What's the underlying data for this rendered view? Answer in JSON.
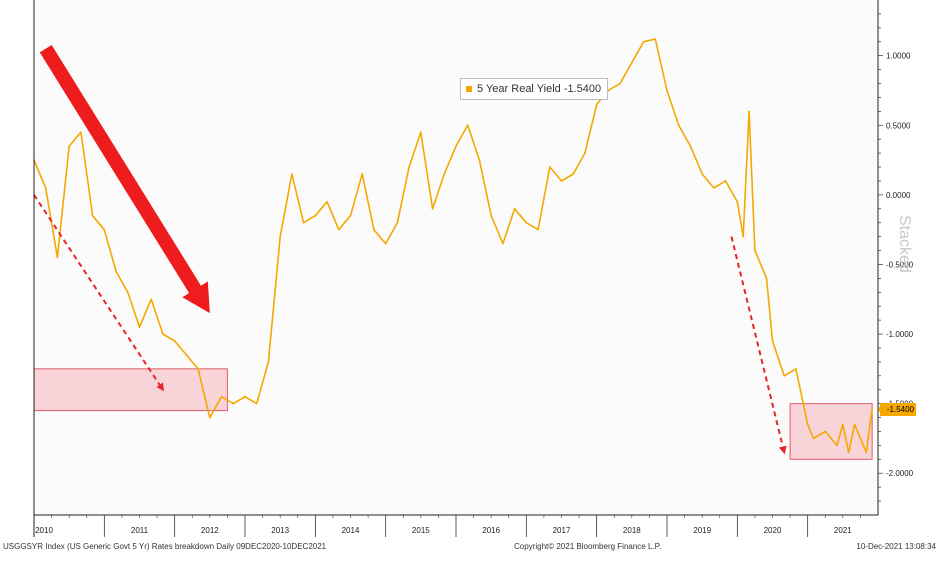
{
  "chart_data": {
    "type": "line",
    "legend": {
      "series_label": "5 Year Real Yield -1.5400",
      "placement": "top-center"
    },
    "series": [
      {
        "name": "5 Year Real Yield",
        "color": "#f5a800",
        "points": [
          [
            "2010-01",
            0.25
          ],
          [
            "2010-03",
            0.05
          ],
          [
            "2010-05",
            -0.45
          ],
          [
            "2010-07",
            0.35
          ],
          [
            "2010-09",
            0.45
          ],
          [
            "2010-11",
            -0.15
          ],
          [
            "2011-01",
            -0.25
          ],
          [
            "2011-03",
            -0.55
          ],
          [
            "2011-05",
            -0.7
          ],
          [
            "2011-07",
            -0.95
          ],
          [
            "2011-09",
            -0.75
          ],
          [
            "2011-11",
            -1.0
          ],
          [
            "2012-01",
            -1.05
          ],
          [
            "2012-03",
            -1.15
          ],
          [
            "2012-05",
            -1.25
          ],
          [
            "2012-07",
            -1.6
          ],
          [
            "2012-09",
            -1.45
          ],
          [
            "2012-11",
            -1.5
          ],
          [
            "2013-01",
            -1.45
          ],
          [
            "2013-03",
            -1.5
          ],
          [
            "2013-05",
            -1.2
          ],
          [
            "2013-07",
            -0.3
          ],
          [
            "2013-09",
            0.15
          ],
          [
            "2013-11",
            -0.2
          ],
          [
            "2014-01",
            -0.15
          ],
          [
            "2014-03",
            -0.05
          ],
          [
            "2014-05",
            -0.25
          ],
          [
            "2014-07",
            -0.15
          ],
          [
            "2014-09",
            0.15
          ],
          [
            "2014-11",
            -0.25
          ],
          [
            "2015-01",
            -0.35
          ],
          [
            "2015-03",
            -0.2
          ],
          [
            "2015-05",
            0.2
          ],
          [
            "2015-07",
            0.45
          ],
          [
            "2015-09",
            -0.1
          ],
          [
            "2015-11",
            0.15
          ],
          [
            "2016-01",
            0.35
          ],
          [
            "2016-03",
            0.5
          ],
          [
            "2016-05",
            0.25
          ],
          [
            "2016-07",
            -0.15
          ],
          [
            "2016-09",
            -0.35
          ],
          [
            "2016-11",
            -0.1
          ],
          [
            "2017-01",
            -0.2
          ],
          [
            "2017-03",
            -0.25
          ],
          [
            "2017-05",
            0.2
          ],
          [
            "2017-07",
            0.1
          ],
          [
            "2017-09",
            0.15
          ],
          [
            "2017-11",
            0.3
          ],
          [
            "2018-01",
            0.65
          ],
          [
            "2018-03",
            0.75
          ],
          [
            "2018-05",
            0.8
          ],
          [
            "2018-07",
            0.95
          ],
          [
            "2018-09",
            1.1
          ],
          [
            "2018-11",
            1.12
          ],
          [
            "2019-01",
            0.75
          ],
          [
            "2019-03",
            0.5
          ],
          [
            "2019-05",
            0.35
          ],
          [
            "2019-07",
            0.15
          ],
          [
            "2019-09",
            0.05
          ],
          [
            "2019-11",
            0.1
          ],
          [
            "2020-01",
            -0.05
          ],
          [
            "2020-02",
            -0.3
          ],
          [
            "2020-03",
            0.6
          ],
          [
            "2020-04",
            -0.4
          ],
          [
            "2020-06",
            -0.6
          ],
          [
            "2020-07",
            -1.05
          ],
          [
            "2020-09",
            -1.3
          ],
          [
            "2020-11",
            -1.25
          ],
          [
            "2021-01",
            -1.65
          ],
          [
            "2021-02",
            -1.75
          ],
          [
            "2021-04",
            -1.7
          ],
          [
            "2021-06",
            -1.8
          ],
          [
            "2021-07",
            -1.65
          ],
          [
            "2021-08",
            -1.85
          ],
          [
            "2021-09",
            -1.65
          ],
          [
            "2021-10",
            -1.75
          ],
          [
            "2021-11",
            -1.85
          ],
          [
            "2021-12",
            -1.54
          ]
        ]
      }
    ],
    "x_axis": {
      "labels": [
        "2010",
        "2011",
        "2012",
        "2013",
        "2014",
        "2015",
        "2016",
        "2017",
        "2018",
        "2019",
        "2020",
        "2021"
      ],
      "range": [
        "2010-01",
        "2022-01"
      ]
    },
    "y_axis": {
      "ticks": [
        1.0,
        0.5,
        0.0,
        -0.5,
        -1.0,
        -1.5,
        -2.0
      ],
      "tick_labels": [
        "1.0000",
        "0.5000",
        "0.0000",
        "-0.5000",
        "-1.0000",
        "-1.5000",
        "-2.0000"
      ],
      "range": [
        -2.3,
        1.4
      ],
      "side": "right"
    },
    "last_value": {
      "value": -1.54,
      "label": "-1.5400"
    },
    "side_label": "Stacked",
    "grid": false,
    "annotations": {
      "shaded_ranges": [
        {
          "x": [
            "2010-01",
            "2012-10"
          ],
          "y": [
            -1.55,
            -1.25
          ],
          "fill": "#f7c5cc",
          "stroke": "#e05a6a"
        },
        {
          "x": [
            "2020-10",
            "2021-12"
          ],
          "y": [
            -1.9,
            -1.5
          ],
          "fill": "#f7c5cc",
          "stroke": "#e05a6a"
        }
      ],
      "dashed_arrows": [
        {
          "from": [
            "2010-01",
            0.0
          ],
          "to": [
            "2011-11",
            -1.4
          ],
          "color": "#e8232a"
        },
        {
          "from": [
            "2019-12",
            -0.3
          ],
          "to": [
            "2020-09",
            -1.85
          ],
          "color": "#e8232a"
        }
      ],
      "big_arrow": {
        "from": [
          "2010-03",
          1.05
        ],
        "to": [
          "2012-07",
          -0.85
        ],
        "color": "#ee1c1c"
      }
    }
  },
  "footer": {
    "left": "USGGSYR Index (US Generic Govt 5 Yr) Rates breakdown  Daily 09DEC2020-10DEC2021",
    "center": "Copyright© 2021 Bloomberg Finance L.P.",
    "right": "10-Dec-2021 13:08:34"
  }
}
